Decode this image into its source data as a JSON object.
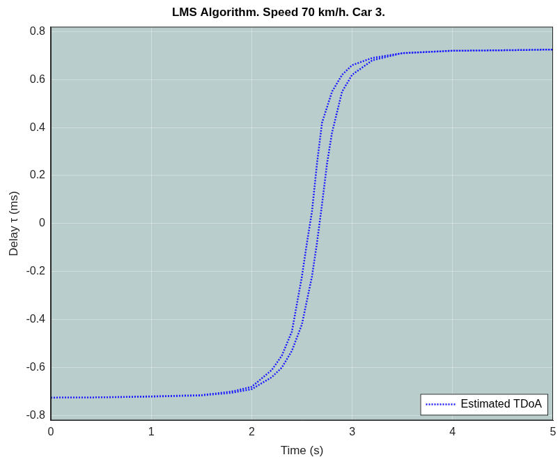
{
  "chart_data": {
    "type": "line",
    "title": "LMS Algorithm. Speed 70 km/h. Car 3.",
    "x_label": "Time (s)",
    "y_label": "Delay τ (ms)",
    "xlim": [
      0,
      5
    ],
    "xticks": [
      0,
      1,
      2,
      3,
      4,
      5
    ],
    "ylim": [
      -0.82,
      0.82
    ],
    "yticks": [
      -0.8,
      -0.6,
      -0.4,
      -0.2,
      0,
      0.2,
      0.4,
      0.6,
      0.8
    ],
    "grid": true,
    "legend": "lower right",
    "series": [
      {
        "name": "Estimated TDoA",
        "color": "#1a1aff",
        "line_style": "dotted",
        "x": [
          0,
          0.5,
          1,
          1.5,
          1.8,
          2.0,
          2.2,
          2.3,
          2.4,
          2.5,
          2.55,
          2.6,
          2.65,
          2.7,
          2.8,
          2.9,
          3.0,
          3.2,
          3.5,
          4,
          4.5,
          5,
          null,
          0,
          0.5,
          1,
          1.5,
          1.8,
          2.0,
          2.2,
          2.3,
          2.4,
          2.5,
          2.6,
          2.65,
          2.7,
          2.75,
          2.8,
          2.9,
          3.0,
          3.2,
          3.5,
          4,
          4.5,
          5
        ],
        "values": [
          -0.725,
          -0.724,
          -0.72,
          -0.715,
          -0.7,
          -0.68,
          -0.61,
          -0.55,
          -0.45,
          -0.22,
          -0.08,
          0.05,
          0.25,
          0.42,
          0.55,
          0.62,
          0.66,
          0.69,
          0.71,
          0.72,
          0.722,
          0.725,
          null,
          -0.725,
          -0.724,
          -0.721,
          -0.716,
          -0.705,
          -0.69,
          -0.64,
          -0.6,
          -0.53,
          -0.42,
          -0.22,
          -0.08,
          0.08,
          0.25,
          0.38,
          0.55,
          0.62,
          0.68,
          0.71,
          0.72,
          0.722,
          0.725
        ]
      }
    ]
  }
}
